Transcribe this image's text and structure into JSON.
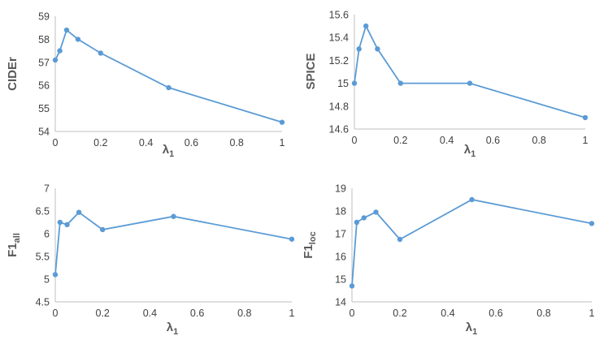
{
  "colors": {
    "series": "#5b9bd5",
    "axis": "#bfbfbf",
    "text": "#404040",
    "label": "#595959"
  },
  "chart_data": [
    {
      "type": "line",
      "x": [
        0,
        0.02,
        0.05,
        0.1,
        0.2,
        0.5,
        1
      ],
      "series": [
        {
          "values": [
            57.1,
            57.5,
            58.4,
            58.0,
            57.4,
            55.9,
            54.4
          ]
        }
      ],
      "xlabel": "λ",
      "xlabel_sub": "1",
      "ylabel": "CIDEr",
      "ylabel_sub": "",
      "xlim": [
        0,
        1
      ],
      "ylim": [
        54,
        59
      ],
      "xticks": [
        "0",
        "0.2",
        "0.4",
        "0.6",
        "0.8",
        "1"
      ],
      "yticks": [
        "54",
        "55",
        "56",
        "57",
        "58",
        "59"
      ],
      "grid": false
    },
    {
      "type": "line",
      "x": [
        0,
        0.02,
        0.05,
        0.1,
        0.2,
        0.5,
        1
      ],
      "series": [
        {
          "values": [
            15.0,
            15.3,
            15.5,
            15.3,
            15.0,
            15.0,
            14.7
          ]
        }
      ],
      "xlabel": "λ",
      "xlabel_sub": "1",
      "ylabel": "SPICE",
      "ylabel_sub": "",
      "xlim": [
        0,
        1
      ],
      "ylim": [
        14.6,
        15.6
      ],
      "xticks": [
        "0",
        "0.2",
        "0.4",
        "0.6",
        "0.8",
        "1"
      ],
      "yticks": [
        "14.6",
        "14.8",
        "15",
        "15.2",
        "15.4",
        "15.6"
      ],
      "grid": false
    },
    {
      "type": "line",
      "x": [
        0,
        0.02,
        0.05,
        0.1,
        0.2,
        0.5,
        1
      ],
      "series": [
        {
          "values": [
            5.1,
            6.25,
            6.2,
            6.47,
            6.09,
            6.38,
            5.88
          ]
        }
      ],
      "xlabel": "λ",
      "xlabel_sub": "1",
      "ylabel": "F1",
      "ylabel_sub": "all",
      "xlim": [
        0,
        1
      ],
      "ylim": [
        4.5,
        7
      ],
      "xticks": [
        "0",
        "0.2",
        "0.4",
        "0.6",
        "0.8",
        "1"
      ],
      "yticks": [
        "4.5",
        "5",
        "5.5",
        "6",
        "6.5",
        "7"
      ],
      "grid": false
    },
    {
      "type": "line",
      "x": [
        0,
        0.02,
        0.05,
        0.1,
        0.2,
        0.5,
        1
      ],
      "series": [
        {
          "values": [
            14.7,
            17.5,
            17.7,
            17.95,
            16.75,
            18.5,
            17.45
          ]
        }
      ],
      "xlabel": "λ",
      "xlabel_sub": "1",
      "ylabel": "F1",
      "ylabel_sub": "loc",
      "xlim": [
        0,
        1
      ],
      "ylim": [
        14,
        19
      ],
      "xticks": [
        "0",
        "0.2",
        "0.4",
        "0.6",
        "0.8",
        "1"
      ],
      "yticks": [
        "14",
        "15",
        "16",
        "17",
        "18",
        "19"
      ],
      "grid": false
    }
  ]
}
